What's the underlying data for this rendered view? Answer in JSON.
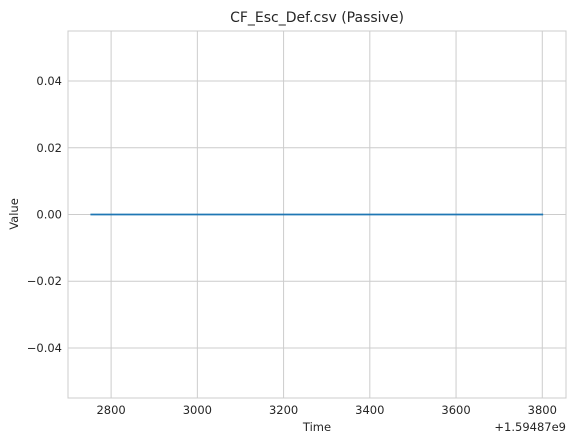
{
  "chart_data": {
    "type": "line",
    "title": "CF_Esc_Def.csv (Passive)",
    "xlabel": "Time",
    "ylabel": "Value",
    "x_offset_label": "+1.59487e9",
    "xlim": [
      2700,
      3855
    ],
    "ylim": [
      -0.055,
      0.055
    ],
    "x_ticks": [
      2800,
      3000,
      3200,
      3400,
      3600,
      3800
    ],
    "x_tick_labels": [
      "2800",
      "3000",
      "3200",
      "3400",
      "3600",
      "3800"
    ],
    "y_ticks": [
      0.04,
      0.02,
      0.0,
      -0.02,
      -0.04
    ],
    "y_tick_labels": [
      "0.04",
      "0.02",
      "0.00",
      "−0.02",
      "−0.04"
    ],
    "grid": true,
    "series": [
      {
        "name": "Value",
        "color": "#1f77b4",
        "x": [
          2752,
          3802
        ],
        "y": [
          0,
          0
        ]
      }
    ]
  }
}
